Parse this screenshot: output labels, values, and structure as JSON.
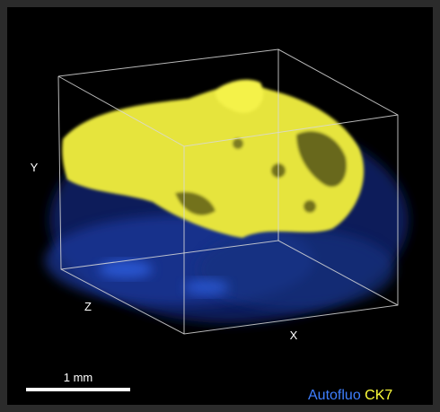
{
  "axes": {
    "y": "Y",
    "z": "Z",
    "x": "X"
  },
  "scale_bar": {
    "label": "1 mm"
  },
  "legend": {
    "channels": [
      {
        "name": "Autofluo",
        "color": "#3f7fff"
      },
      {
        "name": "CK7",
        "color": "#ffff3a"
      }
    ]
  }
}
